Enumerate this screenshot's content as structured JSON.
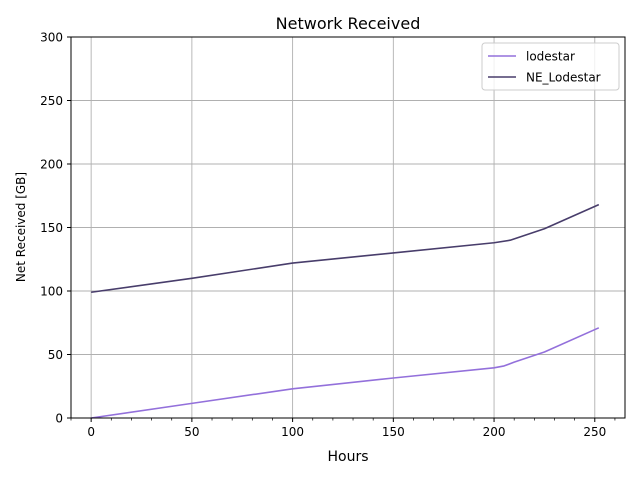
{
  "chart_data": {
    "type": "line",
    "title": "Network Received",
    "xlabel": "Hours",
    "ylabel": "Net Received [GB]",
    "xlim": [
      -10,
      265
    ],
    "ylim": [
      0,
      300
    ],
    "xticks": [
      0,
      50,
      100,
      150,
      200,
      250
    ],
    "yticks": [
      0,
      50,
      100,
      150,
      200,
      250,
      300
    ],
    "grid": true,
    "legend_position": "top-right",
    "series": [
      {
        "name": "lodestar",
        "color": "#9370db",
        "x": [
          0,
          50,
          100,
          150,
          200,
          205,
          210,
          225,
          252
        ],
        "y": [
          0,
          11.5,
          23,
          31.5,
          39.5,
          41,
          44,
          52,
          71
        ]
      },
      {
        "name": "NE_Lodestar",
        "color": "#483d6b",
        "x": [
          0,
          50,
          100,
          150,
          200,
          208,
          225,
          252
        ],
        "y": [
          99,
          110,
          122,
          130,
          138,
          140,
          149,
          168
        ]
      }
    ]
  }
}
